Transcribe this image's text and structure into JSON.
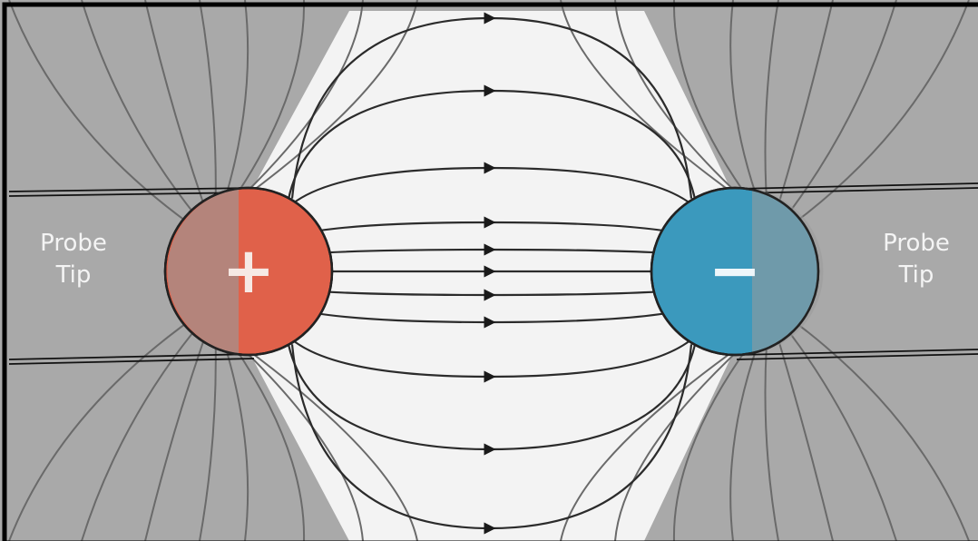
{
  "diagram": {
    "left_probe": {
      "label": "Probe\nTip",
      "charge_symbol": "+",
      "color": "#e0614a"
    },
    "right_probe": {
      "label": "Probe\nTip",
      "charge_symbol": "−",
      "color": "#3b99bd"
    },
    "colors": {
      "outer_background": "#a9a9a9",
      "field_region": "#f3f3f3",
      "field_line": "#2b2b2b",
      "fringe_line": "#6a6a6a",
      "probe_overlay": "#9a9a9a",
      "frame": "#000000"
    }
  }
}
